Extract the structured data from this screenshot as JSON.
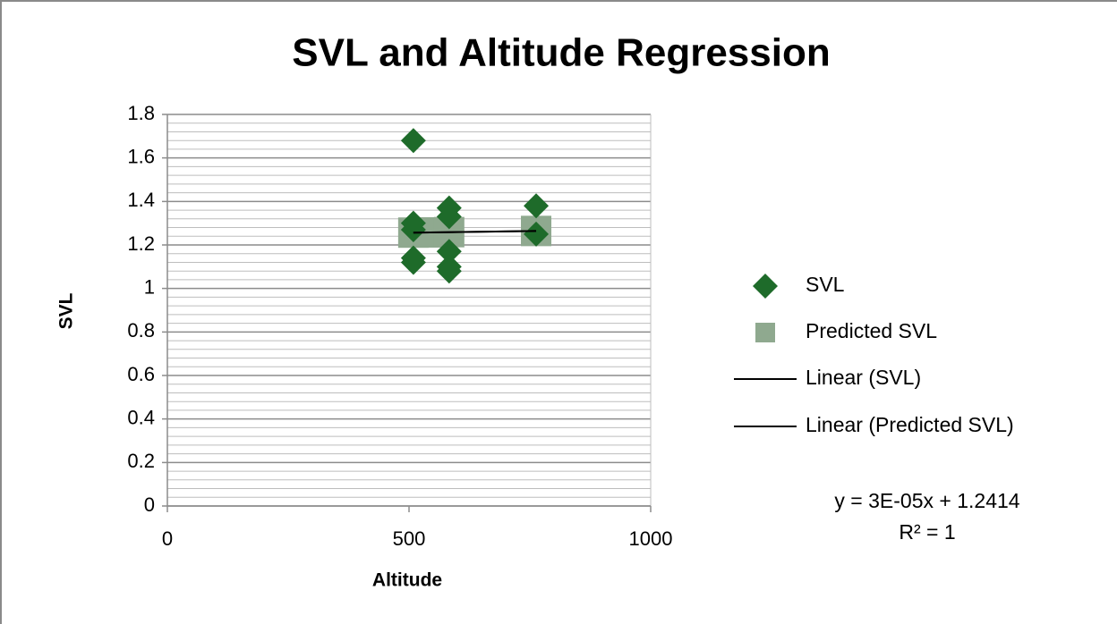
{
  "chart_data": {
    "type": "scatter",
    "title": "SVL and Altitude Regression",
    "x_label": "Altitude",
    "y_label": "SVL",
    "xlim": [
      0,
      1000
    ],
    "xticks": [
      0,
      500,
      1000
    ],
    "ylim": [
      0,
      1.8
    ],
    "yticks": [
      0,
      {
        "value": 0.2,
        "label": "0.2"
      },
      {
        "value": 0.4,
        "label": "0.4"
      },
      {
        "value": 0.6,
        "label": "0.6"
      },
      {
        "value": 0.8,
        "label": "0.8"
      },
      1,
      {
        "value": 1.2,
        "label": "1.2"
      },
      {
        "value": 1.4,
        "label": "1.4"
      },
      {
        "value": 1.6,
        "label": "1.6"
      },
      {
        "value": 1.8,
        "label": "1.8"
      }
    ],
    "grid": true,
    "minor_grid": true,
    "legend": "right",
    "series": [
      {
        "name": "SVL",
        "color": "#1e6b2a",
        "marker": "diamond",
        "x": [
          509,
          509,
          509,
          509,
          509,
          583,
          583,
          583,
          583,
          583,
          763,
          763
        ],
        "values": [
          1.68,
          1.3,
          1.27,
          1.14,
          1.12,
          1.37,
          1.33,
          1.17,
          1.1,
          1.08,
          1.38,
          1.25
        ]
      },
      {
        "name": "Predicted SVL",
        "color": "#8fa98f",
        "marker": "square",
        "x": [
          509,
          540,
          583,
          763
        ],
        "values": [
          1.2567,
          1.2576,
          1.2589,
          1.2643
        ]
      },
      {
        "name": "Linear (SVL)",
        "color": "#000000",
        "marker": "line",
        "x": [
          509,
          763
        ],
        "values": [
          1.2567,
          1.2643
        ]
      },
      {
        "name": "Linear (Predicted SVL)",
        "color": "#000000",
        "marker": "line",
        "x": [
          509,
          763
        ],
        "values": [
          1.2567,
          1.2643
        ]
      }
    ],
    "annotations": [
      "y = 3E-05x + 1.2414",
      "R² = 1"
    ]
  }
}
